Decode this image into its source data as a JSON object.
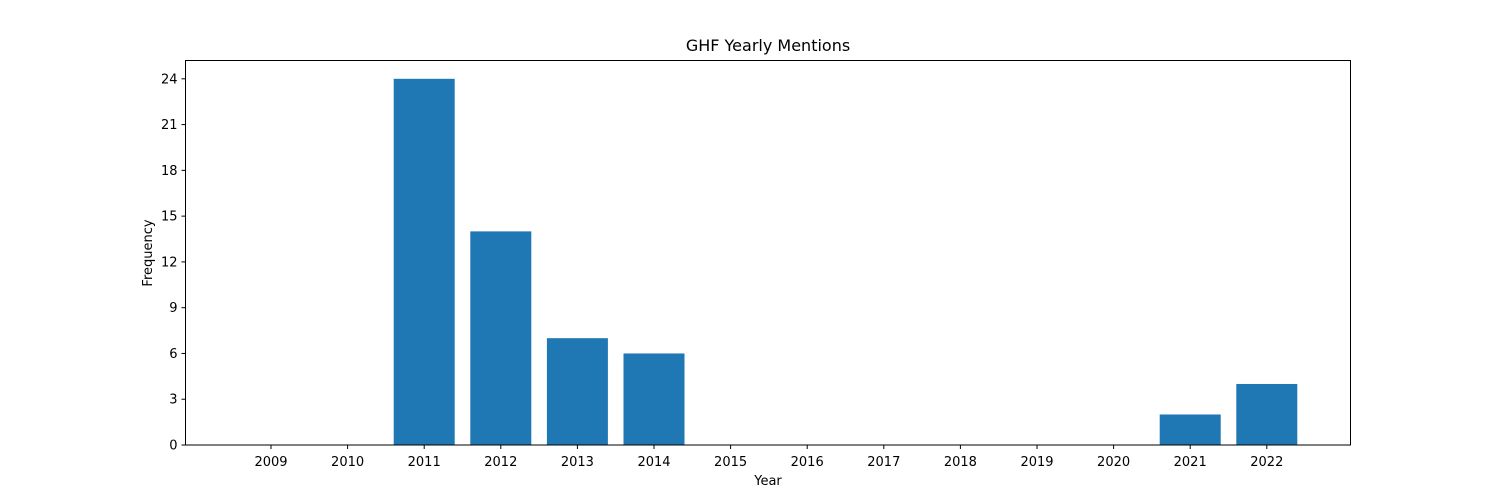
{
  "chart_data": {
    "type": "bar",
    "title": "GHF Yearly Mentions",
    "xlabel": "Year",
    "ylabel": "Frequency",
    "categories": [
      "2009",
      "2010",
      "2011",
      "2012",
      "2013",
      "2014",
      "2015",
      "2016",
      "2017",
      "2018",
      "2019",
      "2020",
      "2021",
      "2022"
    ],
    "values": [
      0,
      0,
      24,
      14,
      7,
      6,
      0,
      0,
      0,
      0,
      0,
      0,
      2,
      4
    ],
    "ylim": [
      0,
      25.2
    ],
    "yticks": [
      0,
      3,
      6,
      9,
      12,
      15,
      18,
      21,
      24
    ],
    "grid": false,
    "legend": "none",
    "bar_color": "#1f77b4"
  }
}
